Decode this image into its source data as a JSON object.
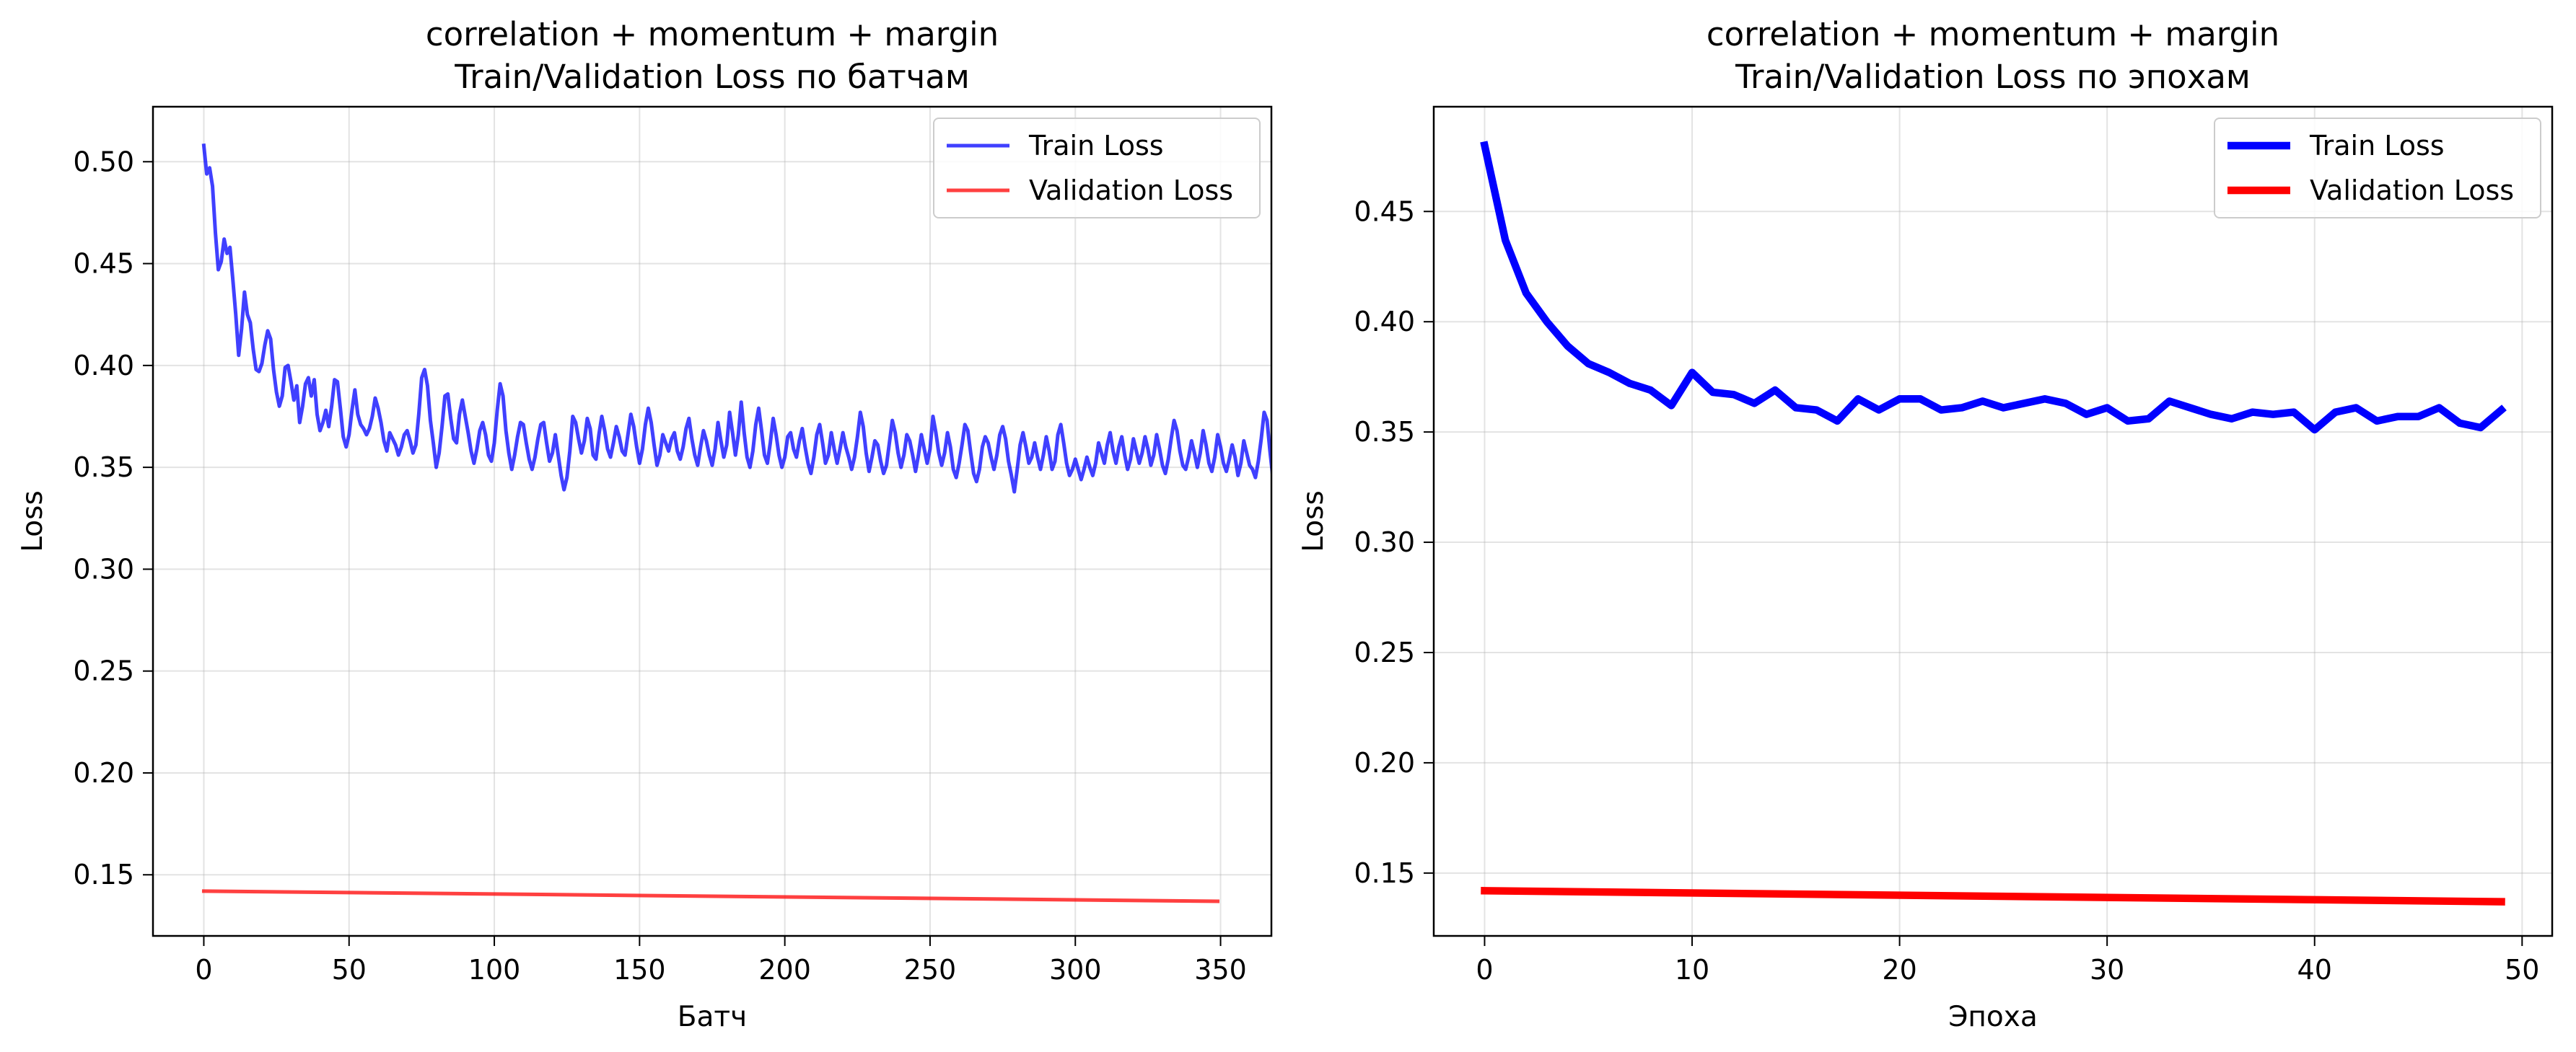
{
  "chart_data": [
    {
      "type": "line",
      "title": "correlation + momentum + margin\nTrain/Validation Loss по батчам",
      "xlabel": "Батч",
      "ylabel": "Loss",
      "xlim": [
        -17.5,
        367.5
      ],
      "ylim": [
        0.12,
        0.527
      ],
      "xticks": [
        0,
        50,
        100,
        150,
        200,
        250,
        300,
        350
      ],
      "yticks": [
        0.15,
        0.2,
        0.25,
        0.3,
        0.35,
        0.4,
        0.45,
        0.5
      ],
      "ytick_format": 2,
      "grid": true,
      "legend": "top-right",
      "series": [
        {
          "name": "Train Loss",
          "color": "#0000ff",
          "opacity": 0.75,
          "width": 1.2,
          "x_start": 0,
          "x_step": 1,
          "values": [
            0.508,
            0.494,
            0.497,
            0.488,
            0.465,
            0.447,
            0.451,
            0.462,
            0.455,
            0.458,
            0.442,
            0.425,
            0.405,
            0.418,
            0.436,
            0.425,
            0.421,
            0.408,
            0.398,
            0.397,
            0.401,
            0.41,
            0.417,
            0.413,
            0.398,
            0.387,
            0.38,
            0.385,
            0.399,
            0.4,
            0.392,
            0.383,
            0.39,
            0.372,
            0.38,
            0.391,
            0.394,
            0.385,
            0.393,
            0.376,
            0.368,
            0.372,
            0.378,
            0.37,
            0.38,
            0.393,
            0.392,
            0.379,
            0.365,
            0.36,
            0.366,
            0.378,
            0.388,
            0.376,
            0.371,
            0.369,
            0.366,
            0.369,
            0.375,
            0.384,
            0.379,
            0.372,
            0.363,
            0.358,
            0.367,
            0.364,
            0.361,
            0.356,
            0.36,
            0.366,
            0.368,
            0.363,
            0.357,
            0.361,
            0.376,
            0.394,
            0.398,
            0.39,
            0.373,
            0.362,
            0.35,
            0.357,
            0.37,
            0.385,
            0.386,
            0.374,
            0.364,
            0.362,
            0.376,
            0.383,
            0.375,
            0.367,
            0.358,
            0.352,
            0.359,
            0.368,
            0.372,
            0.366,
            0.356,
            0.353,
            0.362,
            0.378,
            0.391,
            0.385,
            0.368,
            0.357,
            0.349,
            0.356,
            0.365,
            0.372,
            0.371,
            0.362,
            0.354,
            0.349,
            0.355,
            0.364,
            0.371,
            0.372,
            0.362,
            0.353,
            0.357,
            0.366,
            0.356,
            0.346,
            0.339,
            0.345,
            0.358,
            0.375,
            0.372,
            0.364,
            0.357,
            0.363,
            0.374,
            0.369,
            0.356,
            0.354,
            0.366,
            0.375,
            0.368,
            0.359,
            0.355,
            0.362,
            0.37,
            0.365,
            0.358,
            0.356,
            0.366,
            0.376,
            0.37,
            0.36,
            0.352,
            0.359,
            0.371,
            0.379,
            0.372,
            0.361,
            0.351,
            0.356,
            0.366,
            0.362,
            0.358,
            0.364,
            0.367,
            0.358,
            0.354,
            0.36,
            0.369,
            0.374,
            0.364,
            0.356,
            0.351,
            0.36,
            0.368,
            0.363,
            0.356,
            0.351,
            0.359,
            0.372,
            0.363,
            0.355,
            0.361,
            0.377,
            0.367,
            0.356,
            0.366,
            0.382,
            0.367,
            0.355,
            0.35,
            0.358,
            0.371,
            0.379,
            0.368,
            0.356,
            0.352,
            0.362,
            0.374,
            0.366,
            0.356,
            0.35,
            0.355,
            0.365,
            0.367,
            0.359,
            0.355,
            0.363,
            0.369,
            0.36,
            0.352,
            0.347,
            0.355,
            0.366,
            0.371,
            0.362,
            0.352,
            0.356,
            0.367,
            0.359,
            0.352,
            0.359,
            0.367,
            0.36,
            0.355,
            0.349,
            0.355,
            0.365,
            0.377,
            0.37,
            0.357,
            0.348,
            0.355,
            0.363,
            0.361,
            0.353,
            0.347,
            0.351,
            0.362,
            0.373,
            0.367,
            0.357,
            0.35,
            0.356,
            0.366,
            0.363,
            0.356,
            0.348,
            0.356,
            0.366,
            0.359,
            0.352,
            0.359,
            0.375,
            0.367,
            0.357,
            0.351,
            0.357,
            0.367,
            0.36,
            0.349,
            0.345,
            0.352,
            0.361,
            0.371,
            0.368,
            0.357,
            0.347,
            0.343,
            0.349,
            0.36,
            0.365,
            0.362,
            0.355,
            0.349,
            0.356,
            0.366,
            0.37,
            0.364,
            0.353,
            0.346,
            0.338,
            0.349,
            0.361,
            0.367,
            0.36,
            0.352,
            0.355,
            0.362,
            0.355,
            0.349,
            0.356,
            0.365,
            0.358,
            0.349,
            0.353,
            0.366,
            0.371,
            0.362,
            0.352,
            0.346,
            0.349,
            0.354,
            0.349,
            0.344,
            0.349,
            0.355,
            0.35,
            0.346,
            0.352,
            0.362,
            0.357,
            0.352,
            0.361,
            0.367,
            0.358,
            0.352,
            0.36,
            0.365,
            0.356,
            0.349,
            0.354,
            0.364,
            0.358,
            0.352,
            0.357,
            0.365,
            0.359,
            0.351,
            0.356,
            0.366,
            0.359,
            0.351,
            0.347,
            0.354,
            0.364,
            0.373,
            0.368,
            0.358,
            0.351,
            0.349,
            0.355,
            0.363,
            0.357,
            0.35,
            0.357,
            0.368,
            0.361,
            0.352,
            0.348,
            0.355,
            0.366,
            0.36,
            0.352,
            0.348,
            0.354,
            0.361,
            0.355,
            0.346,
            0.352,
            0.363,
            0.357,
            0.351,
            0.349,
            0.345,
            0.353,
            0.364,
            0.377,
            0.373,
            0.358,
            0.345,
            0.35
          ]
        },
        {
          "name": "Validation Loss",
          "color": "#ff0000",
          "opacity": 0.75,
          "width": 1.2,
          "x": [
            0,
            349
          ],
          "values": [
            0.142,
            0.137
          ]
        }
      ]
    },
    {
      "type": "line",
      "title": "correlation + momentum + margin\nTrain/Validation Loss по эпохам",
      "xlabel": "Эпоха",
      "ylabel": "Loss",
      "xlim": [
        -2.45,
        51.45
      ],
      "ylim": [
        0.1215,
        0.4975
      ],
      "xticks": [
        0,
        10,
        20,
        30,
        40,
        50
      ],
      "yticks": [
        0.15,
        0.2,
        0.25,
        0.3,
        0.35,
        0.4,
        0.45
      ],
      "ytick_format": 2,
      "grid": true,
      "legend": "top-right",
      "series": [
        {
          "name": "Train Loss",
          "color": "#0000ff",
          "opacity": 1,
          "width": 2.5,
          "x_start": 0,
          "x_step": 1,
          "values": [
            0.48,
            0.437,
            0.413,
            0.4,
            0.389,
            0.381,
            0.377,
            0.372,
            0.369,
            0.362,
            0.377,
            0.368,
            0.367,
            0.363,
            0.369,
            0.361,
            0.36,
            0.355,
            0.365,
            0.36,
            0.365,
            0.365,
            0.36,
            0.361,
            0.364,
            0.361,
            0.363,
            0.365,
            0.363,
            0.358,
            0.361,
            0.355,
            0.356,
            0.364,
            0.361,
            0.358,
            0.356,
            0.359,
            0.358,
            0.359,
            0.351,
            0.359,
            0.361,
            0.355,
            0.357,
            0.357,
            0.361,
            0.354,
            0.352,
            0.36
          ]
        },
        {
          "name": "Validation Loss",
          "color": "#ff0000",
          "opacity": 1,
          "width": 2.5,
          "x": [
            0,
            49
          ],
          "values": [
            0.142,
            0.137
          ]
        }
      ]
    }
  ]
}
